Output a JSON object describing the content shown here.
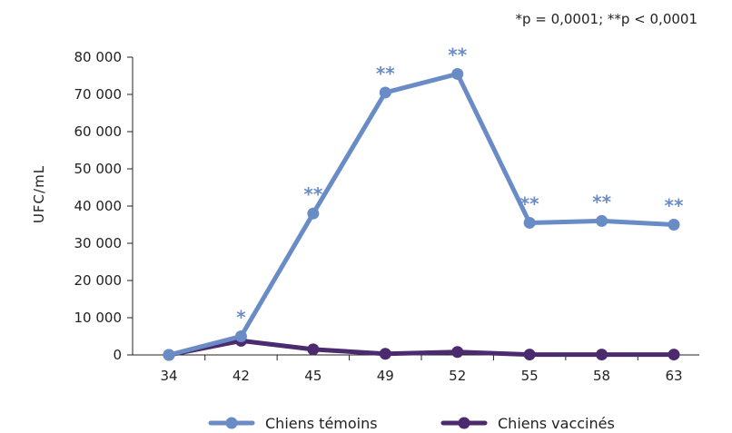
{
  "chart_data": {
    "type": "line",
    "note": "*p = 0,0001; **p < 0,0001",
    "ylabel": "UFC/mL",
    "xlabel": "",
    "categories": [
      "34",
      "42",
      "45",
      "49",
      "52",
      "55",
      "58",
      "63"
    ],
    "ylim": [
      0,
      80000
    ],
    "yticks": [
      0,
      10000,
      20000,
      30000,
      40000,
      50000,
      60000,
      70000,
      80000
    ],
    "ytick_labels": [
      "0",
      "10 000",
      "20 000",
      "30 000",
      "40 000",
      "50 000",
      "60 000",
      "70 000",
      "80 000"
    ],
    "grid": false,
    "legend_position": "bottom",
    "series": [
      {
        "name": "Chiens témoins",
        "color": "#6a8cc6",
        "values": [
          0,
          5000,
          38000,
          70500,
          75500,
          35500,
          36000,
          35000
        ],
        "significance": [
          "",
          "*",
          "**",
          "**",
          "**",
          "**",
          "**",
          "**"
        ]
      },
      {
        "name": "Chiens vaccinés",
        "color": "#4b2a6e",
        "values": [
          0,
          3800,
          1500,
          300,
          800,
          100,
          100,
          100
        ],
        "significance": [
          "",
          "",
          "",
          "",
          "",
          "",
          "",
          ""
        ]
      }
    ]
  }
}
